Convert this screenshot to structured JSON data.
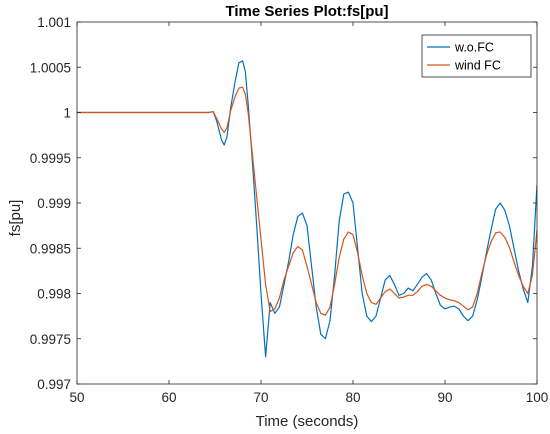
{
  "chart_data": {
    "type": "line",
    "title": "Time Series Plot:fs[pu]",
    "xlabel": "Time (seconds)",
    "ylabel": "fs[pu]",
    "xlim": [
      50,
      100
    ],
    "ylim": [
      0.997,
      1.001
    ],
    "xticks": [
      50,
      60,
      70,
      80,
      90,
      100
    ],
    "xtick_labels": [
      "50",
      "60",
      "70",
      "80",
      "90",
      "100"
    ],
    "yticks": [
      0.997,
      0.9975,
      0.998,
      0.9985,
      0.999,
      0.9995,
      1,
      1.0005,
      1.001
    ],
    "ytick_labels": [
      "0.997",
      "0.9975",
      "0.998",
      "0.9985",
      "0.999",
      "0.9995",
      "1",
      "1.0005",
      "1.001"
    ],
    "grid": false,
    "legend_position": "top-right",
    "series": [
      {
        "name": "w.o.FC",
        "color": "#0072BD",
        "x": [
          50,
          63.5,
          64.3,
          64.8,
          65.2,
          65.7,
          66.0,
          66.3,
          66.7,
          67.2,
          67.6,
          68.0,
          68.3,
          68.6,
          69.0,
          69.5,
          70.0,
          70.5,
          71.0,
          71.5,
          72.0,
          72.5,
          73.0,
          73.5,
          74.0,
          74.5,
          75.0,
          75.5,
          76.0,
          76.5,
          77.0,
          77.5,
          78.0,
          78.5,
          79.0,
          79.5,
          80.0,
          80.5,
          81.0,
          81.5,
          82.0,
          82.5,
          83.0,
          83.5,
          84.0,
          84.5,
          85.0,
          85.5,
          86.0,
          86.5,
          87.0,
          87.5,
          88.0,
          88.5,
          89.0,
          89.5,
          90.0,
          90.5,
          91.0,
          91.5,
          92.0,
          92.5,
          93.0,
          93.5,
          94.0,
          94.5,
          95.0,
          95.5,
          96.0,
          96.5,
          97.0,
          97.5,
          98.0,
          98.5,
          99.0,
          99.5,
          100
        ],
        "y": [
          1.0,
          1.0,
          1.0,
          1.00001,
          0.9999,
          0.9997,
          0.99964,
          0.99973,
          1.00005,
          1.00035,
          1.00055,
          1.00057,
          1.00045,
          1.0001,
          0.99955,
          0.9988,
          0.998,
          0.9973,
          0.9979,
          0.99778,
          0.99785,
          0.9981,
          0.99835,
          0.99865,
          0.99885,
          0.99889,
          0.99875,
          0.9983,
          0.99785,
          0.99755,
          0.9975,
          0.9977,
          0.9982,
          0.9988,
          0.9991,
          0.99912,
          0.999,
          0.9985,
          0.998,
          0.99775,
          0.99769,
          0.99775,
          0.99795,
          0.99815,
          0.9982,
          0.9981,
          0.99798,
          0.998,
          0.99806,
          0.99803,
          0.9981,
          0.99818,
          0.99822,
          0.99815,
          0.998,
          0.99787,
          0.99783,
          0.99785,
          0.99786,
          0.99783,
          0.99775,
          0.9977,
          0.99775,
          0.99793,
          0.99818,
          0.99845,
          0.9987,
          0.99893,
          0.999,
          0.99892,
          0.99875,
          0.9985,
          0.99825,
          0.99805,
          0.9979,
          0.9983,
          0.9992
        ]
      },
      {
        "name": "wind FC",
        "color": "#D95319",
        "x": [
          50,
          63.5,
          64.3,
          64.8,
          65.2,
          65.7,
          66.0,
          66.3,
          66.7,
          67.2,
          67.6,
          68.0,
          68.3,
          68.6,
          69.0,
          69.5,
          70.0,
          70.5,
          71.0,
          71.5,
          72.0,
          72.5,
          73.0,
          73.5,
          74.0,
          74.5,
          75.0,
          75.5,
          76.0,
          76.5,
          77.0,
          77.5,
          78.0,
          78.5,
          79.0,
          79.5,
          80.0,
          80.5,
          81.0,
          81.5,
          82.0,
          82.5,
          83.0,
          83.5,
          84.0,
          84.5,
          85.0,
          85.5,
          86.0,
          86.5,
          87.0,
          87.5,
          88.0,
          88.5,
          89.0,
          89.5,
          90.0,
          90.5,
          91.0,
          91.5,
          92.0,
          92.5,
          93.0,
          93.5,
          94.0,
          94.5,
          95.0,
          95.5,
          96.0,
          96.5,
          97.0,
          97.5,
          98.0,
          98.5,
          99.0,
          99.5,
          100
        ],
        "y": [
          1.0,
          1.0,
          1.0,
          1.00001,
          0.99993,
          0.99982,
          0.99978,
          0.99983,
          1.00002,
          1.00018,
          1.00027,
          1.00028,
          1.0002,
          1.0,
          0.9996,
          0.9991,
          0.9986,
          0.9981,
          0.9978,
          0.99783,
          0.99795,
          0.99815,
          0.9983,
          0.99845,
          0.99852,
          0.99848,
          0.9983,
          0.9981,
          0.9979,
          0.99778,
          0.99776,
          0.99785,
          0.9981,
          0.9984,
          0.9986,
          0.99868,
          0.99865,
          0.99845,
          0.9982,
          0.998,
          0.9979,
          0.99788,
          0.99795,
          0.99802,
          0.99805,
          0.998,
          0.99795,
          0.99796,
          0.99798,
          0.99798,
          0.99802,
          0.99808,
          0.9981,
          0.99808,
          0.99803,
          0.99798,
          0.99795,
          0.99793,
          0.99792,
          0.9979,
          0.99786,
          0.99782,
          0.99785,
          0.998,
          0.99822,
          0.99842,
          0.99857,
          0.99867,
          0.99868,
          0.99862,
          0.99851,
          0.99835,
          0.9982,
          0.99808,
          0.998,
          0.9982,
          0.9987
        ]
      }
    ]
  }
}
